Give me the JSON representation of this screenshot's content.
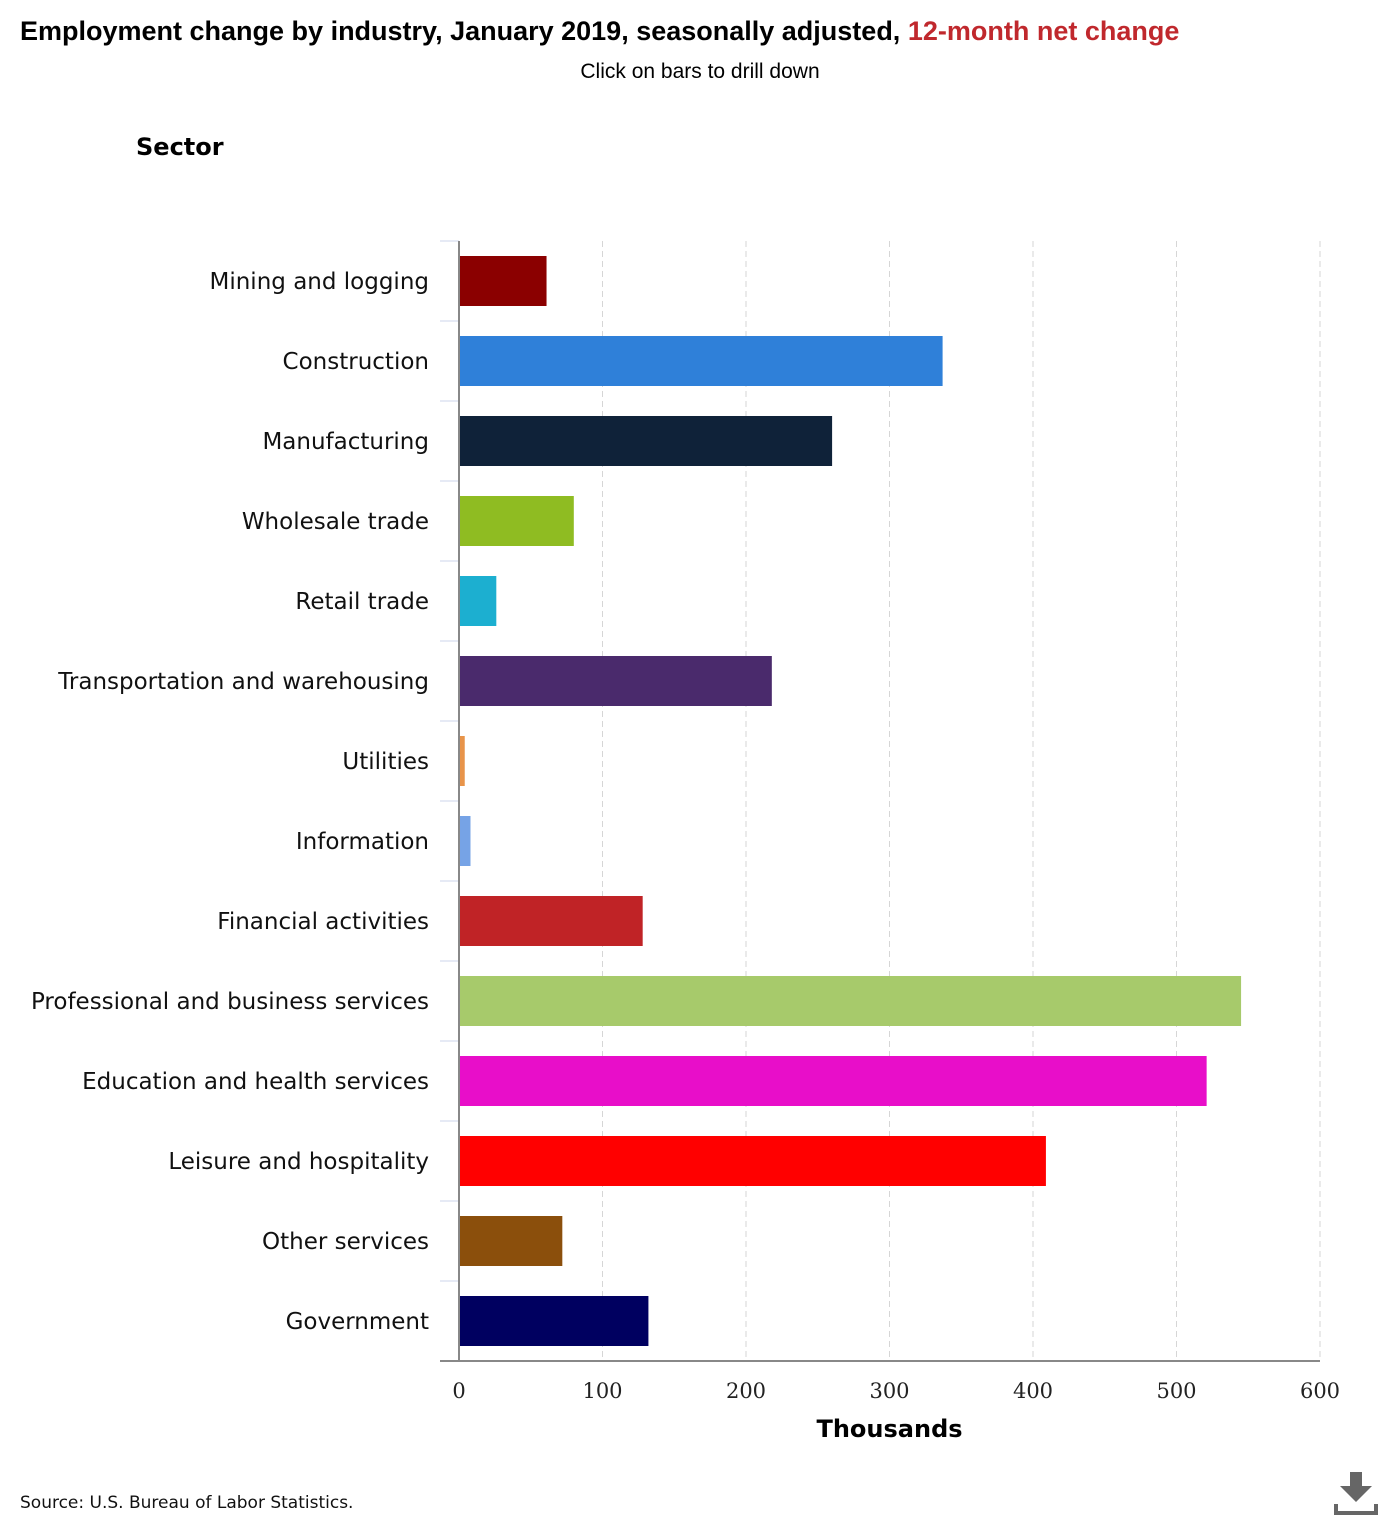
{
  "header": {
    "title_main": "Employment change by industry, January 2019, seasonally adjusted,",
    "title_highlight": "12-month net change",
    "subtitle": "Click on bars to drill down"
  },
  "footer": {
    "source": "Source: U.S. Bureau of Labor Statistics."
  },
  "toolbar": {
    "download_icon": "download-icon"
  },
  "chart_data": {
    "type": "bar",
    "orientation": "horizontal",
    "ylabel": "Sector",
    "xlabel": "Thousands",
    "xlim": [
      0,
      600
    ],
    "xticks": [
      0,
      100,
      200,
      300,
      400,
      500,
      600
    ],
    "grid": "vertical dashed",
    "categories": [
      "Mining and logging",
      "Construction",
      "Manufacturing",
      "Wholesale trade",
      "Retail trade",
      "Transportation and warehousing",
      "Utilities",
      "Information",
      "Financial activities",
      "Professional and business services",
      "Education and health services",
      "Leisure and hospitality",
      "Other services",
      "Government"
    ],
    "values": [
      61,
      337,
      260,
      80,
      26,
      218,
      4,
      8,
      128,
      545,
      521,
      409,
      72,
      132
    ],
    "colors": [
      "#8b0000",
      "#2f80d9",
      "#0f2239",
      "#8fbc22",
      "#1cafd0",
      "#4a2a6c",
      "#e8944a",
      "#76a3e6",
      "#c02326",
      "#a7ca6b",
      "#e80ec9",
      "#ff0000",
      "#8b4f0c",
      "#000060"
    ]
  }
}
